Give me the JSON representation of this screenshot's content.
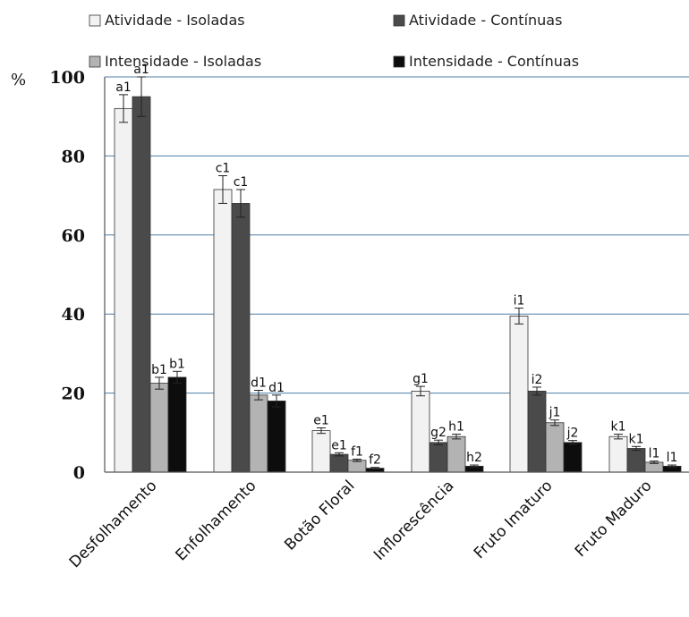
{
  "chart_data": {
    "type": "bar",
    "ylabel": "%",
    "ylim": [
      0,
      100
    ],
    "yticks": [
      "0",
      "20",
      "40",
      "60",
      "80",
      "100"
    ],
    "grid": true,
    "legend_position": "top",
    "categories": [
      "Desfolhamento",
      "Enfolhamento",
      "Botão Floral",
      "Inflorescência",
      "Fruto Imaturo",
      "Fruto Maduro"
    ],
    "series": [
      {
        "name": "Atividade - Isoladas",
        "color": "#f2f2f2",
        "values": [
          92,
          71.5,
          10.5,
          20.5,
          39.5,
          9
        ],
        "errors": [
          3.5,
          3.5,
          0.7,
          1.2,
          2,
          0.6
        ],
        "labels": [
          "a1",
          "c1",
          "e1",
          "g1",
          "i1",
          "k1"
        ]
      },
      {
        "name": "Atividade - Contínuas",
        "color": "#4a4a4a",
        "values": [
          95,
          68,
          4.5,
          7.5,
          20.5,
          6
        ],
        "errors": [
          5,
          3.5,
          0.4,
          0.6,
          1,
          0.5
        ],
        "labels": [
          "a1",
          "c1",
          "e1",
          "g2",
          "i2",
          "k1"
        ]
      },
      {
        "name": "Intensidade - Isoladas",
        "color": "#b3b3b3",
        "values": [
          22.5,
          19.5,
          3,
          9,
          12.5,
          2.5
        ],
        "errors": [
          1.5,
          1.2,
          0.3,
          0.6,
          0.7,
          0.3
        ],
        "labels": [
          "b1",
          "d1",
          "f1",
          "h1",
          "j1",
          "l1"
        ]
      },
      {
        "name": "Intensidade - Contínuas",
        "color": "#0d0d0d",
        "values": [
          24,
          18,
          1,
          1.5,
          7.5,
          1.5
        ],
        "errors": [
          1.5,
          1.5,
          0.2,
          0.3,
          0.5,
          0.3
        ],
        "labels": [
          "b1",
          "d1",
          "f2",
          "h2",
          "j2",
          "l1"
        ]
      }
    ]
  }
}
